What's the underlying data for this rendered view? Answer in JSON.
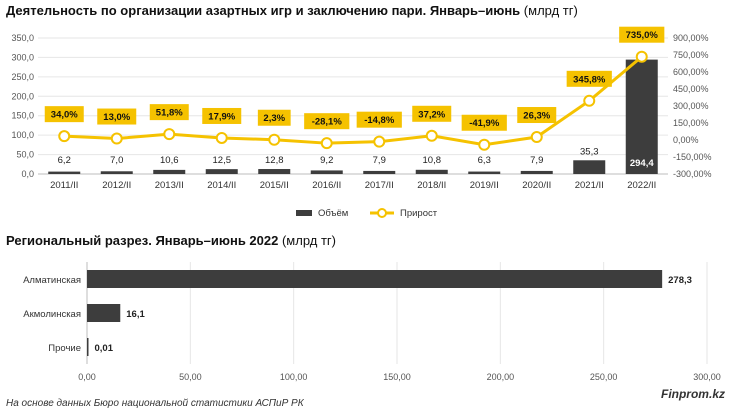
{
  "chart_data": [
    {
      "type": "bar+line",
      "title": "Деятельность по организации азартных игр и заключению пари. Январь–июнь",
      "unit": "(млрд тг)",
      "categories": [
        "2011/II",
        "2012/II",
        "2013/II",
        "2014/II",
        "2015/II",
        "2016/II",
        "2017/II",
        "2018/II",
        "2019/II",
        "2020/II",
        "2021/II",
        "2022/II"
      ],
      "series": [
        {
          "name": "Объём",
          "kind": "bar",
          "axis": "left",
          "color": "#3d3d3d",
          "values": [
            6.2,
            7.0,
            10.6,
            12.5,
            12.8,
            9.2,
            7.9,
            10.8,
            6.3,
            7.9,
            35.3,
            294.4
          ],
          "labels": [
            "6,2",
            "7,0",
            "10,6",
            "12,5",
            "12,8",
            "9,2",
            "7,9",
            "10,8",
            "6,3",
            "7,9",
            "35,3",
            "294,4"
          ]
        },
        {
          "name": "Прирост",
          "kind": "line",
          "axis": "right",
          "color": "#f5c200",
          "values": [
            34.0,
            13.0,
            51.8,
            17.9,
            2.3,
            -28.1,
            -14.8,
            37.2,
            -41.9,
            26.3,
            345.8,
            735.0
          ],
          "labels": [
            "34,0%",
            "13,0%",
            "51,8%",
            "17,9%",
            "2,3%",
            "-28,1%",
            "-14,8%",
            "37,2%",
            "-41,9%",
            "26,3%",
            "345,8%",
            "735,0%"
          ]
        }
      ],
      "ylim_left": [
        0,
        350
      ],
      "yticks_left": [
        "0,0",
        "50,0",
        "100,0",
        "150,0",
        "200,0",
        "250,0",
        "300,0",
        "350,0"
      ],
      "ylim_right": [
        -300,
        900
      ],
      "yticks_right": [
        "-300,00%",
        "-150,00%",
        "0,00%",
        "150,00%",
        "300,00%",
        "450,00%",
        "600,00%",
        "750,00%",
        "900,00%"
      ],
      "legend": "bottom-center",
      "legend_labels": [
        "Объём",
        "Прирост"
      ]
    },
    {
      "type": "bar",
      "orientation": "horizontal",
      "title": "Региональный разрез. Январь–июнь 2022",
      "unit": "(млрд тг)",
      "categories": [
        "Алматинская",
        "Акмолинская",
        "Прочие"
      ],
      "values": [
        278.3,
        16.1,
        0.01
      ],
      "labels": [
        "278,3",
        "16,1",
        "0,01"
      ],
      "xlim": [
        0,
        300
      ],
      "xticks": [
        "0,00",
        "50,00",
        "100,00",
        "150,00",
        "200,00",
        "250,00",
        "300,00"
      ],
      "color": "#3d3d3d"
    }
  ],
  "footer": {
    "brand": "Finprom.kz",
    "source": "На основе данных Бюро национальной статистики АСПиР РК"
  }
}
